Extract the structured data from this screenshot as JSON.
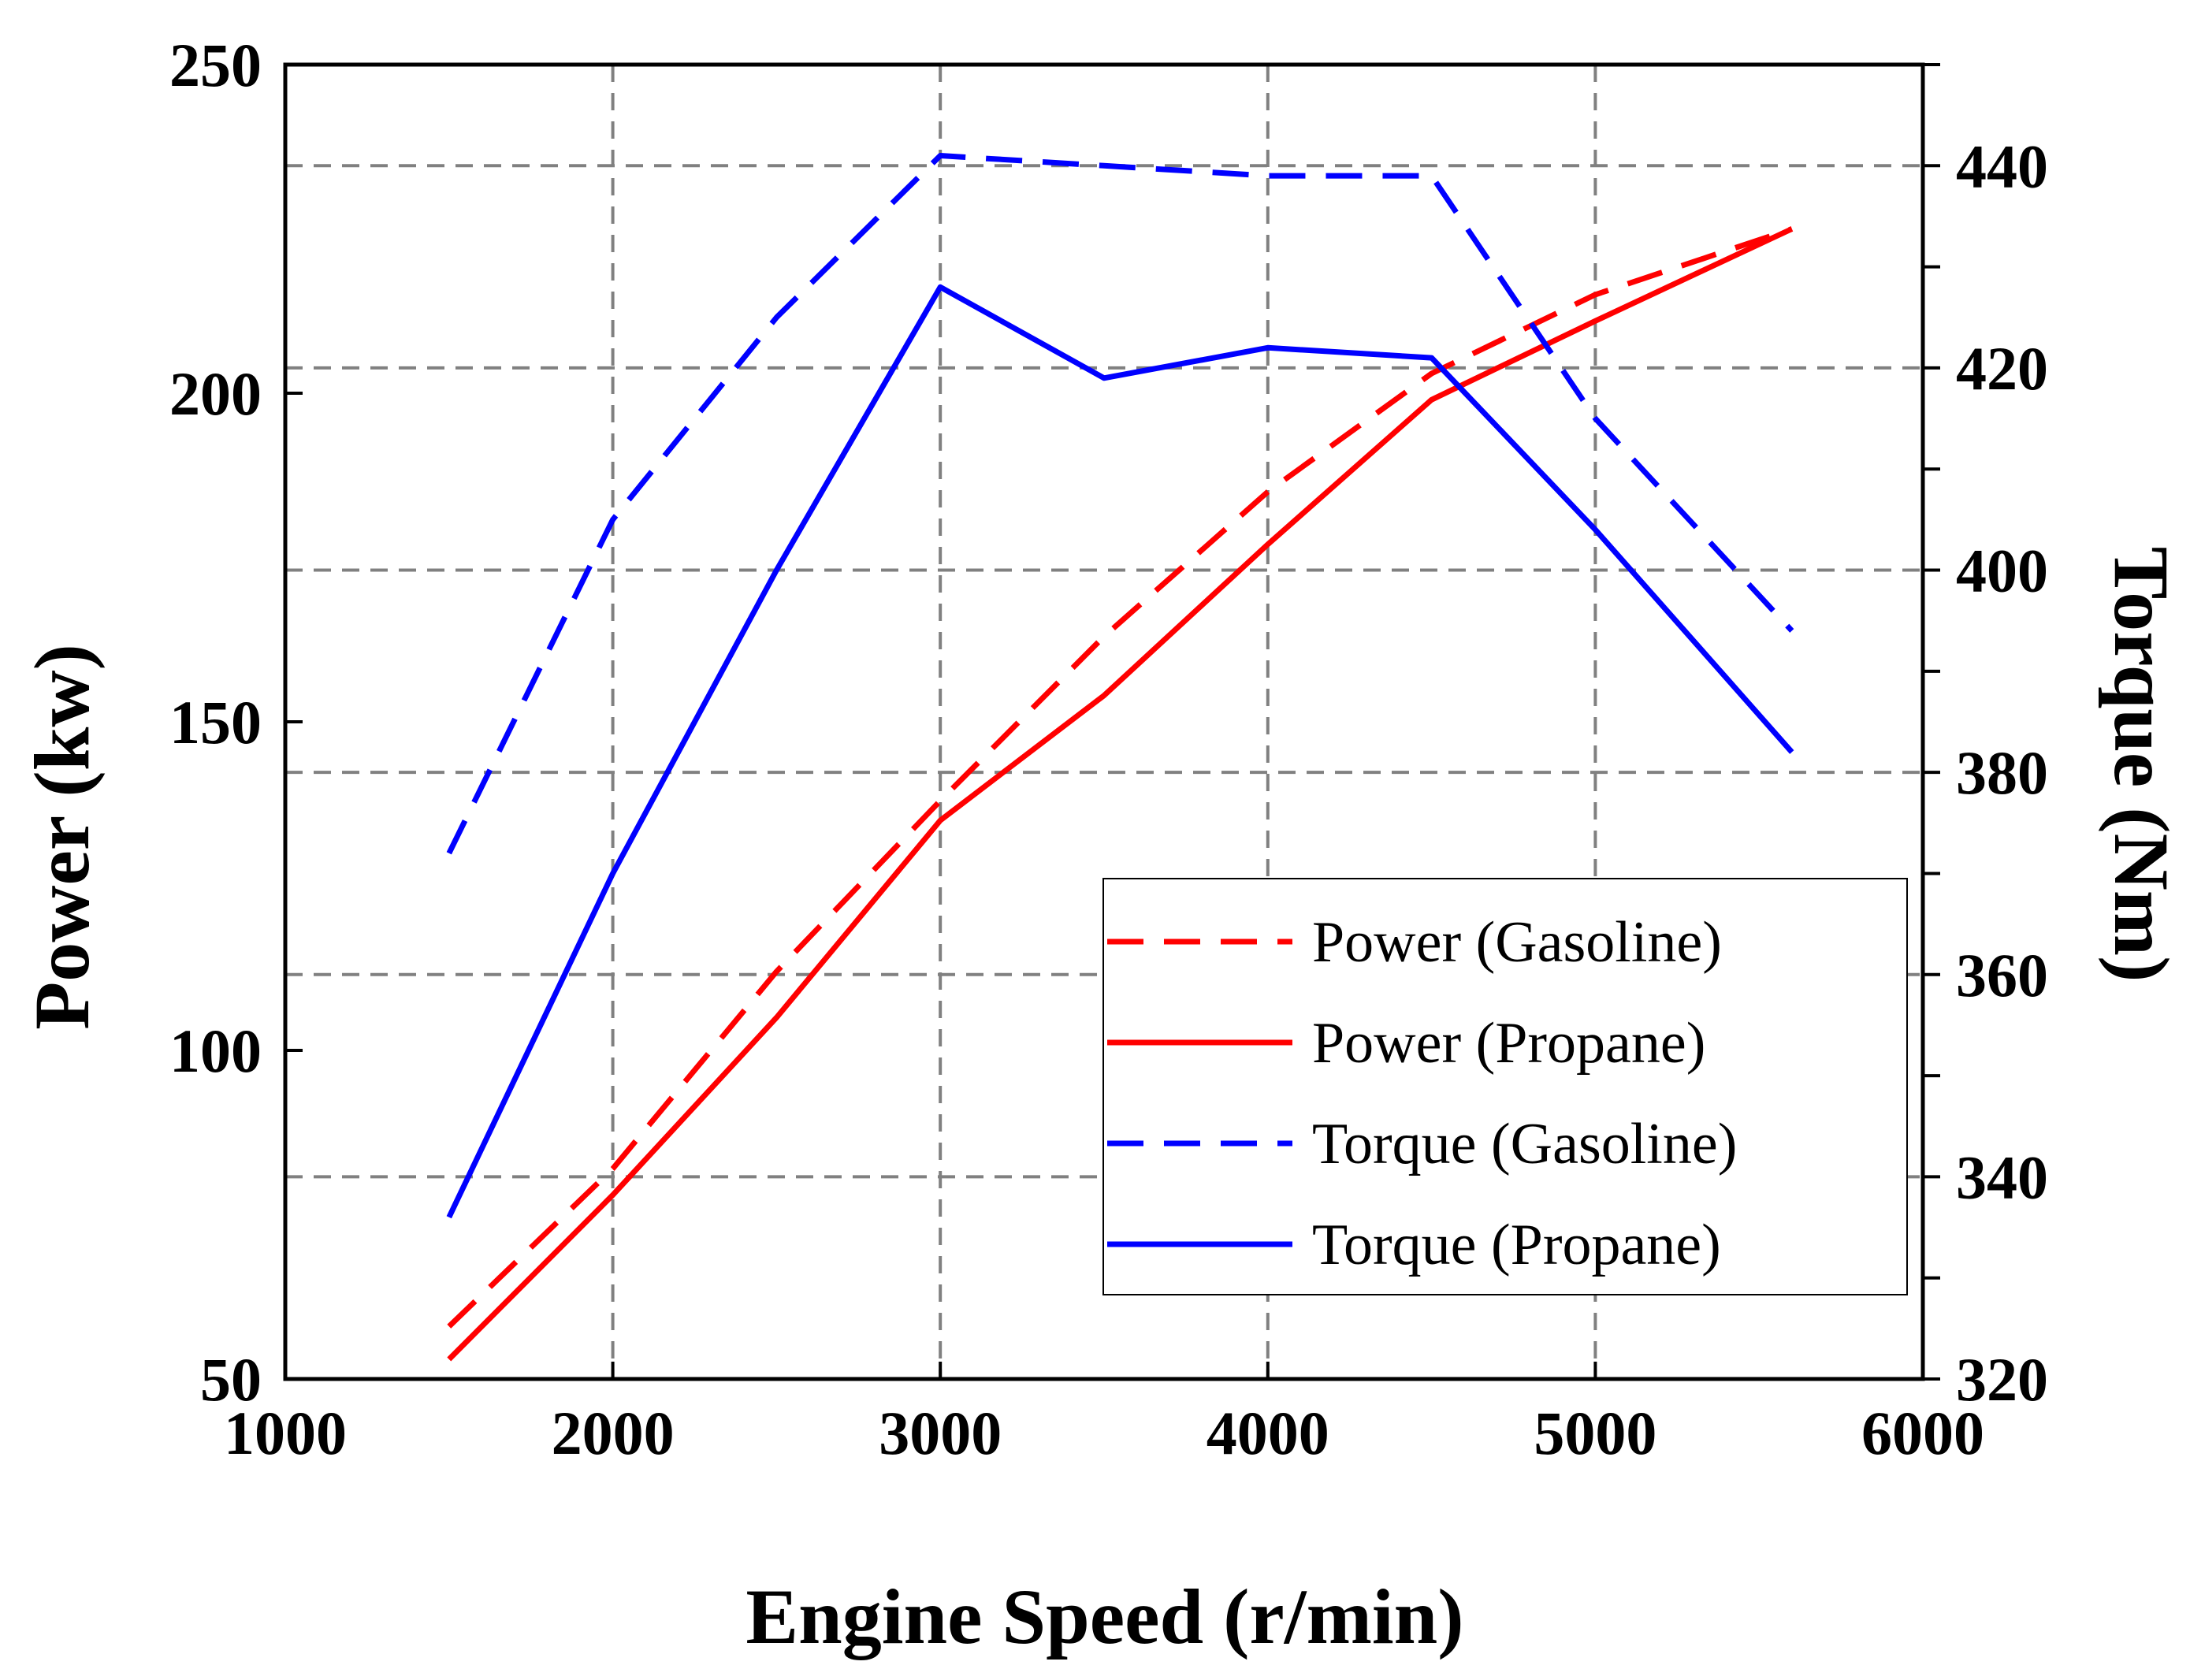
{
  "chart_data": {
    "type": "line",
    "x": [
      1500,
      2000,
      2500,
      3000,
      3500,
      4000,
      4500,
      5000,
      5600
    ],
    "xlim": [
      1000,
      6000
    ],
    "x_ticks": [
      1000,
      2000,
      3000,
      4000,
      5000,
      6000
    ],
    "xlabel": "Engine Speed (r/min)",
    "y_left": {
      "label": "Power (kw)",
      "lim": [
        50,
        250
      ],
      "ticks": [
        50,
        100,
        150,
        200,
        250
      ]
    },
    "y_right": {
      "label": "Torque (Nm)",
      "lim": [
        320,
        450
      ],
      "ticks": [
        320,
        340,
        360,
        380,
        400,
        420,
        440
      ]
    },
    "grid": true,
    "legend_position": "lower-right",
    "series": [
      {
        "name": "Power (Gasoline)",
        "axis": "left",
        "style": "dashed",
        "color": "#ff0000",
        "values": [
          58,
          82,
          112,
          138,
          163,
          185,
          203,
          215,
          225
        ]
      },
      {
        "name": "Power (Propane)",
        "axis": "left",
        "style": "solid",
        "color": "#ff0000",
        "values": [
          53,
          78,
          105,
          135,
          154,
          177,
          199,
          211,
          225
        ]
      },
      {
        "name": "Torque (Gasoline)",
        "axis": "right",
        "style": "dashed",
        "color": "#0000ff",
        "values": [
          372,
          405,
          425,
          441,
          440,
          439,
          439,
          415,
          394
        ]
      },
      {
        "name": "Torque (Propane)",
        "axis": "right",
        "style": "solid",
        "color": "#0000ff",
        "values": [
          336,
          370,
          400,
          428,
          419,
          422,
          421,
          404,
          382
        ]
      }
    ]
  }
}
